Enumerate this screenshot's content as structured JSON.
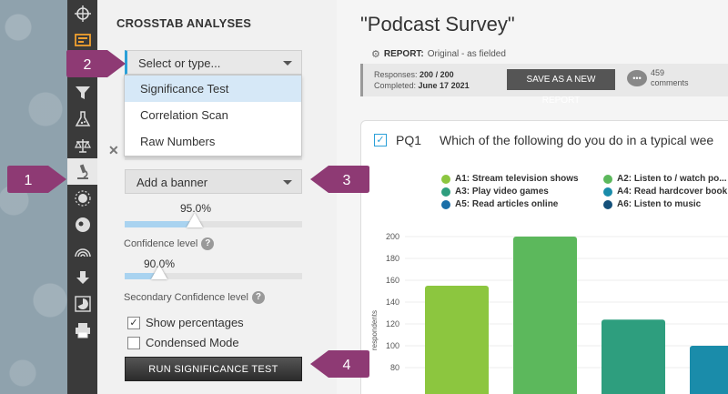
{
  "toolbar": {
    "icons": [
      "crosshair-icon",
      "report-icon",
      "caption-icon",
      "filter-icon",
      "flask-icon",
      "scales-icon",
      "microscope-icon",
      "sun-icon",
      "chart-badge-icon",
      "rainbow-icon",
      "download-icon",
      "pie-icon",
      "printer-icon"
    ]
  },
  "panel": {
    "title": "CROSSTAB ANALYSES",
    "select_placeholder": "Select or type...",
    "menu": [
      "Significance Test",
      "Correlation Scan",
      "Raw Numbers"
    ],
    "banner_placeholder": "Add a banner",
    "confidence": {
      "value_label": "95.0%",
      "value": 0.95,
      "label": "Confidence level"
    },
    "secondary": {
      "value_label": "90.0%",
      "value": 0.9,
      "label": "Secondary Confidence level"
    },
    "show_percentages": {
      "label": "Show percentages",
      "checked": true
    },
    "condensed_mode": {
      "label": "Condensed Mode",
      "checked": false
    },
    "run_button": "RUN SIGNIFICANCE TEST"
  },
  "report": {
    "title": "\"Podcast Survey\"",
    "meta_label": "REPORT:",
    "meta_value": "Original - as fielded",
    "responses_label": "Responses:",
    "responses_value": "200 / 200",
    "completed_label": "Completed:",
    "completed_value": "June 17 2021",
    "save_button": "SAVE AS A NEW REPORT",
    "comments_count": "459",
    "comments_label": "comments"
  },
  "question": {
    "code": "PQ1",
    "text": "Which of the following do you do in a typical wee"
  },
  "legend": [
    {
      "label": "A1: Stream television shows",
      "color": "#8cc63f"
    },
    {
      "label": "A2: Listen to / watch po...",
      "color": "#5cb85c"
    },
    {
      "label": "A3: Play video games",
      "color": "#2e9e7e"
    },
    {
      "label": "A4: Read hardcover book",
      "color": "#1a8caa"
    },
    {
      "label": "A5: Read articles online",
      "color": "#1a6fa8"
    },
    {
      "label": "A6: Listen to music",
      "color": "#14507a"
    }
  ],
  "callouts": [
    "1",
    "2",
    "3",
    "4"
  ],
  "chart_data": {
    "type": "bar",
    "categories": [
      "A1",
      "A2",
      "A3",
      "A4"
    ],
    "values": [
      155,
      200,
      124,
      100
    ],
    "colors": [
      "#8cc63f",
      "#5cb85c",
      "#2e9e7e",
      "#1a8caa"
    ],
    "ylabel": "respondents",
    "yticks": [
      80,
      100,
      120,
      140,
      160,
      180,
      200
    ],
    "ylim": [
      60,
      210
    ]
  }
}
